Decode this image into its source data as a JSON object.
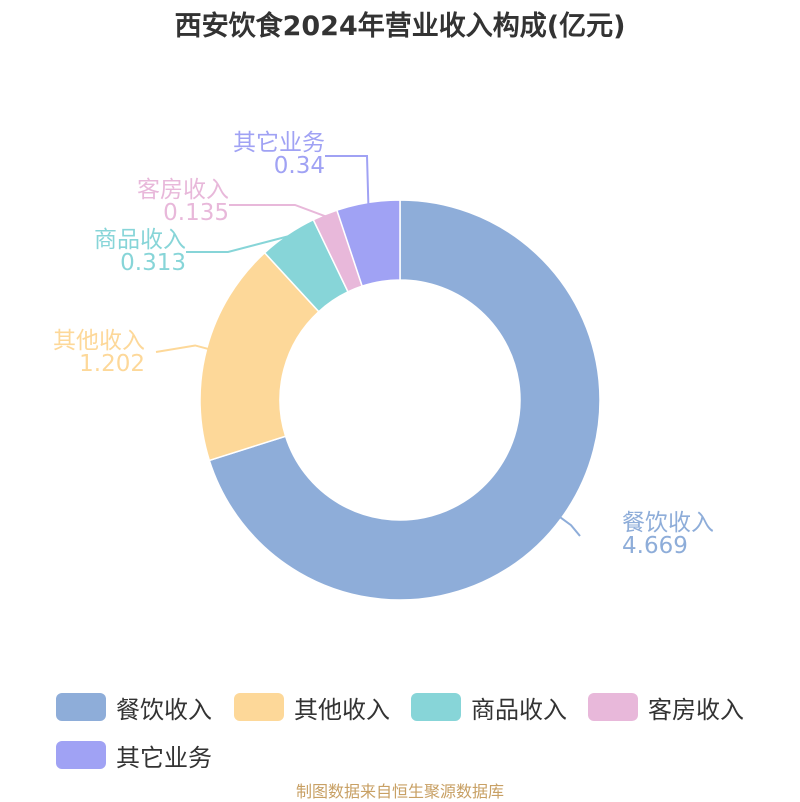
{
  "title": "西安饮食2024年营业收入构成(亿元)",
  "source": "制图数据来自恒生聚源数据库",
  "chart_data": {
    "type": "pie",
    "variant": "donut",
    "title": "西安饮食2024年营业收入构成(亿元)",
    "legend_position": "bottom",
    "slices": [
      {
        "name": "餐饮收入",
        "value": 4.669,
        "value_label": "4.669",
        "color": "#8eadd9"
      },
      {
        "name": "其他收入",
        "value": 1.202,
        "value_label": "1.202",
        "color": "#fdd899"
      },
      {
        "name": "商品收入",
        "value": 0.313,
        "value_label": "0.313",
        "color": "#87d5d8"
      },
      {
        "name": "客房收入",
        "value": 0.135,
        "value_label": "0.135",
        "color": "#e8b8da"
      },
      {
        "name": "其它业务",
        "value": 0.34,
        "value_label": "0.34",
        "color": "#a0a2f4"
      }
    ]
  }
}
